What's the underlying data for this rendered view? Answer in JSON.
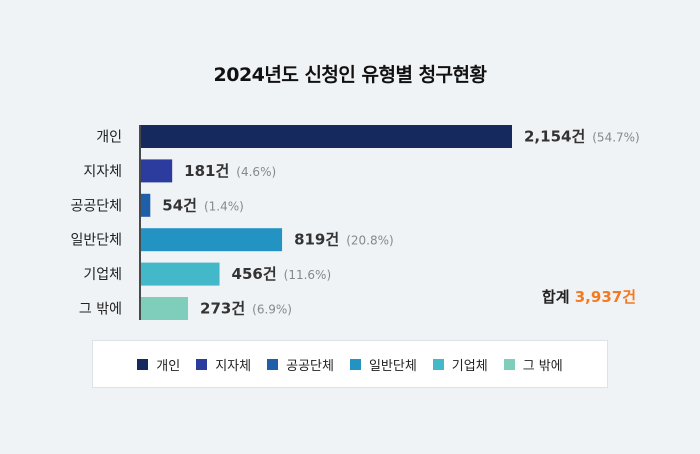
{
  "chart_data": {
    "type": "bar",
    "orientation": "horizontal",
    "title": "2024년도 신청인 유형별 청구현황",
    "categories": [
      "개인",
      "지자체",
      "공공단체",
      "일반단체",
      "기업체",
      "그 밖에"
    ],
    "values": [
      2154,
      181,
      54,
      819,
      456,
      273
    ],
    "value_labels": [
      "2,154건",
      "181건",
      "54건",
      "819건",
      "456건",
      "273건"
    ],
    "percent_labels": [
      "(54.7%)",
      "(4.6%)",
      "(1.4%)",
      "(20.8%)",
      "(11.6%)",
      "(6.9%)"
    ],
    "colors": [
      "#16295e",
      "#2b3c9e",
      "#1f5ea8",
      "#2393c3",
      "#42b8c9",
      "#7fcdbb"
    ],
    "xlim": [
      0,
      2154
    ],
    "grid": false,
    "legend_position": "bottom",
    "legend": [
      "개인",
      "지자체",
      "공공단체",
      "일반단체",
      "기업체",
      "그 밖에"
    ]
  },
  "total": {
    "label": "합계",
    "value": "3,937건"
  }
}
